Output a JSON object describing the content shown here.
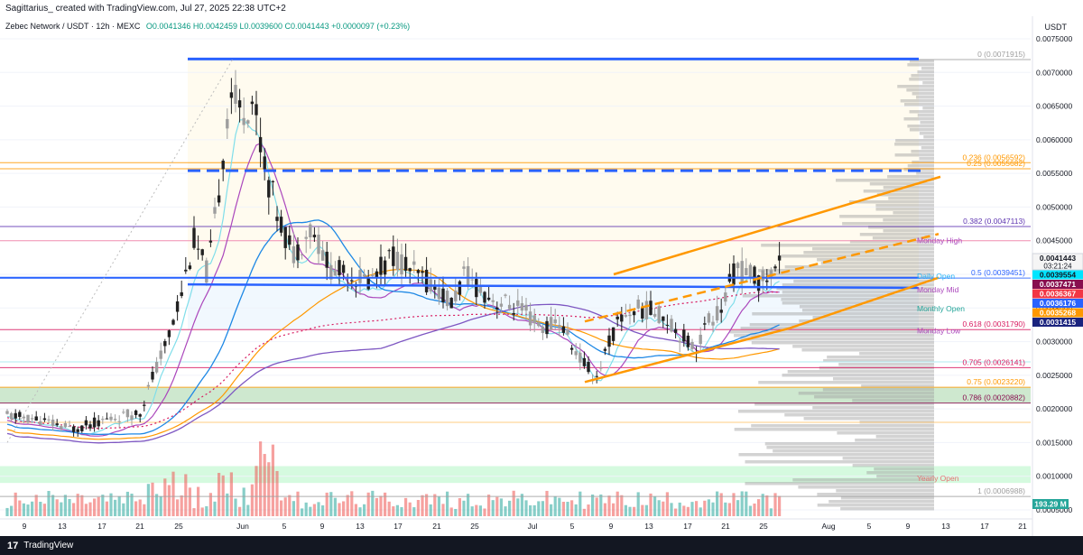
{
  "header": {
    "author_line": "Sagittarius_ created with TradingView.com, Jul 27, 2025 22:38 UTC+2"
  },
  "symbol": {
    "name": "Zebec Network / USDT · 12h · MEXC",
    "ohlc": "O0.0041346 H0.0042459 L0.0039600 C0.0041443 +0.0000097 (+0.23%)"
  },
  "price_unit": "USDT",
  "footer": {
    "brand": "TradingView"
  },
  "chart_data": {
    "type": "candlestick",
    "x_tick_labels": [
      "9",
      "13",
      "17",
      "21",
      "25",
      "Jun",
      "5",
      "9",
      "13",
      "17",
      "21",
      "25",
      "Jul",
      "5",
      "9",
      "13",
      "17",
      "21",
      "25",
      "Aug",
      "5",
      "9",
      "13",
      "17",
      "21"
    ],
    "y_tick_labels": [
      "0.0075000",
      "0.0070000",
      "0.0065000",
      "0.0060000",
      "0.0055000",
      "0.0050000",
      "0.0045000",
      "0.0040000",
      "0.0035000",
      "0.0030000",
      "0.0025000",
      "0.0020000",
      "0.0015000",
      "0.0010000",
      "0.0005000"
    ],
    "y_ticks": [
      0.0075,
      0.007,
      0.0065,
      0.006,
      0.0055,
      0.005,
      0.0045,
      0.004,
      0.0035,
      0.003,
      0.0025,
      0.002,
      0.0015,
      0.001,
      0.0005
    ],
    "price_badges": [
      {
        "label": "0.0041443",
        "sub": "03:21:24",
        "value": 0.0041443,
        "color": "#f5f5f5",
        "text_color": "#131722"
      },
      {
        "label": "0.0039554",
        "value": 0.0039554,
        "color": "#00e5ff",
        "text_color": "#131722"
      },
      {
        "label": "0.0037471",
        "value": 0.0037471,
        "color": "#880e4f",
        "text_color": "#ffffff"
      },
      {
        "label": "0.0036367",
        "value": 0.0036367,
        "color": "#f23645",
        "text_color": "#ffffff"
      },
      {
        "label": "0.0036176",
        "value": 0.0036176,
        "color": "#2962ff",
        "text_color": "#ffffff"
      },
      {
        "label": "0.0035268",
        "value": 0.0035268,
        "color": "#ff9800",
        "text_color": "#ffffff"
      },
      {
        "label": "0.0031415",
        "value": 0.0031415,
        "color": "#1a237e",
        "text_color": "#ffffff"
      }
    ],
    "volume_badge": "193.29 M",
    "fib_levels": [
      {
        "label": "0 (0.0071915)",
        "value": 0.0071915,
        "color": "#9e9e9e"
      },
      {
        "label": "0.236 (0.0056592)",
        "value": 0.0056592,
        "color": "#ff9800"
      },
      {
        "label": "0.25 (0.0055682)",
        "value": 0.0055682,
        "color": "#ff9800"
      },
      {
        "label": "0.382 (0.0047113)",
        "value": 0.0047113,
        "color": "#5e35b1"
      },
      {
        "label": "0.5 (0.0039451)",
        "value": 0.0039451,
        "color": "#2962ff"
      },
      {
        "label": "0.618 (0.0031790)",
        "value": 0.003179,
        "color": "#d81b60"
      },
      {
        "label": "0.705 (0.0026141)",
        "value": 0.0026141,
        "color": "#d81b60"
      },
      {
        "label": "0.75 (0.0023220)",
        "value": 0.002322,
        "color": "#ff9800"
      },
      {
        "label": "0.786 (0.0020882)",
        "value": 0.0020882,
        "color": "#880e4f"
      },
      {
        "label": "1 (0.0006988)",
        "value": 0.0006988,
        "color": "#9e9e9e"
      }
    ],
    "level_labels": [
      {
        "label": "Monday High",
        "value": 0.0045,
        "color": "#ab47bc"
      },
      {
        "label": "Daily Open",
        "value": 0.00397,
        "color": "#29b6f6"
      },
      {
        "label": "Monday Mid",
        "value": 0.00377,
        "color": "#ab47bc"
      },
      {
        "label": "Monthly Open",
        "value": 0.00349,
        "color": "#26a69a"
      },
      {
        "label": "Monday Low",
        "value": 0.00316,
        "color": "#ab47bc"
      },
      {
        "label": "Yearly Open",
        "value": 0.00097,
        "color": "#e57373"
      }
    ],
    "colors": {
      "up": "#26a69a",
      "down": "#ef5350",
      "up_candle": "#9e9e9e",
      "down_candle": "#212121",
      "channel": "#ff9800",
      "blue_line": "#2962ff"
    }
  }
}
